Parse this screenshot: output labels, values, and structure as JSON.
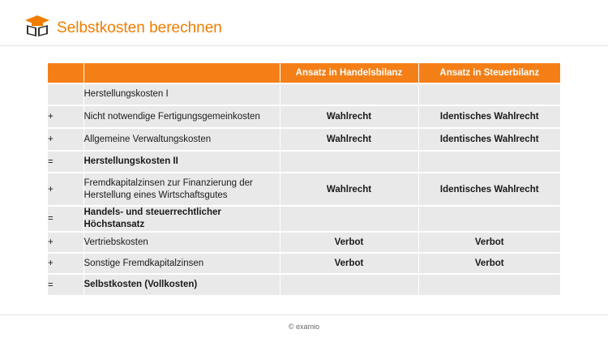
{
  "header": {
    "title": "Selbstkosten berechnen",
    "logo_icon": "graduation-book-icon"
  },
  "table": {
    "columns": [
      "",
      "",
      "Ansatz in Handelsbilanz",
      "Ansatz in Steuerbilanz"
    ],
    "rows": [
      {
        "op": "",
        "label": "Herstellungskosten I",
        "bold": false,
        "handelsbilanz": "",
        "steuerbilanz": ""
      },
      {
        "op": "+",
        "label": "Nicht notwendige Fertigungsgemeinkosten",
        "bold": false,
        "handelsbilanz": "Wahlrecht",
        "steuerbilanz": "Identisches Wahlrecht"
      },
      {
        "op": "+",
        "label": "Allgemeine Verwaltungskosten",
        "bold": false,
        "handelsbilanz": "Wahlrecht",
        "steuerbilanz": "Identisches Wahlrecht"
      },
      {
        "op": "=",
        "label": "Herstellungskosten II",
        "bold": true,
        "handelsbilanz": "",
        "steuerbilanz": ""
      },
      {
        "op": "+",
        "label": "Fremdkapitalzinsen zur Finanzierung der Herstellung eines Wirtschaftsgutes",
        "bold": false,
        "handelsbilanz": "Wahlrecht",
        "steuerbilanz": "Identisches Wahlrecht"
      },
      {
        "op": "=",
        "label": "Handels- und steuerrechtlicher Höchstansatz",
        "bold": true,
        "handelsbilanz": "",
        "steuerbilanz": ""
      },
      {
        "op": "+",
        "label": "Vertriebskosten",
        "bold": false,
        "handelsbilanz": "Verbot",
        "steuerbilanz": "Verbot"
      },
      {
        "op": "+",
        "label": "Sonstige Fremdkapitalzinsen",
        "bold": false,
        "handelsbilanz": "Verbot",
        "steuerbilanz": "Verbot"
      },
      {
        "op": "=",
        "label": "Selbstkosten (Vollkosten)",
        "bold": true,
        "handelsbilanz": "",
        "steuerbilanz": ""
      }
    ]
  },
  "footer": {
    "text": "© examio"
  },
  "colors": {
    "accent": "#f57f17",
    "title": "#f07d00",
    "row_bg": "#e9e9e9"
  }
}
